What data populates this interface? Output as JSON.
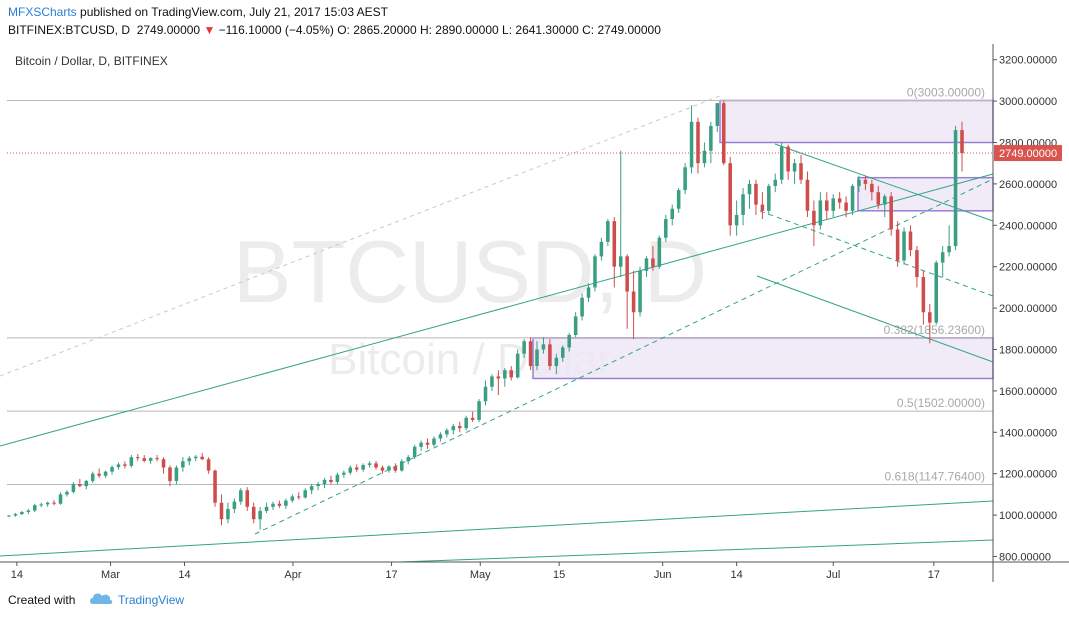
{
  "header": {
    "author": "MFXSCharts",
    "published_text": "published on TradingView.com, July 21, 2017 15:03 AEST",
    "symbol": "BITFINEX:BTCUSD, D",
    "last": "2749.00000",
    "change": "−116.10000 (−4.05%)",
    "open": "O: 2865.20000",
    "high": "H: 2890.00000",
    "low": "L: 2641.30000",
    "close": "C: 2749.00000",
    "change_color": "#e03a3a"
  },
  "footer": {
    "created_with": "Created with",
    "brand": "TradingView"
  },
  "chart_data": {
    "type": "candlestick",
    "title": "Bitcoin / Dollar, D, BITFINEX",
    "watermark_symbol": "BTCUSD, D",
    "watermark_name": "Bitcoin / Dollar",
    "ylim": [
      750,
      3280
    ],
    "y_ticks": [
      "3200.00000",
      "3000.00000",
      "2800.00000",
      "2600.00000",
      "2400.00000",
      "2200.00000",
      "2000.00000",
      "1800.00000",
      "1600.00000",
      "1400.00000",
      "1200.00000",
      "1000.00000",
      "800.00000"
    ],
    "x_ticks": [
      "14",
      "Mar",
      "14",
      "Apr",
      "17",
      "May",
      "15",
      "Jun",
      "14",
      "Jul",
      "17"
    ],
    "last_price_label": "2749.00000",
    "last_price": 2749,
    "fib_levels": [
      {
        "label": "0(3003.00000)",
        "value": 3003
      },
      {
        "label": "0.382(1856.23600)",
        "value": 1856.236
      },
      {
        "label": "0.5(1502.00000)",
        "value": 1502
      },
      {
        "label": "0.618(1147.76400)",
        "value": 1147.764
      }
    ],
    "zones": [
      {
        "from": 2800,
        "to": 3003
      },
      {
        "from": 2470,
        "to": 2630
      },
      {
        "from": 1660,
        "to": 1856
      }
    ],
    "colors": {
      "up": "#3a9e82",
      "down": "#cf4c4c",
      "trend": "#32a28a",
      "zone_fill": "#ede8f6",
      "zone_border": "#9a7ed6"
    },
    "candles": [
      [
        995,
        1000,
        990,
        998
      ],
      [
        998,
        1010,
        992,
        1005
      ],
      [
        1005,
        1020,
        1000,
        1015
      ],
      [
        1015,
        1030,
        1005,
        1022
      ],
      [
        1022,
        1055,
        1015,
        1048
      ],
      [
        1048,
        1060,
        1038,
        1052
      ],
      [
        1052,
        1065,
        1040,
        1060
      ],
      [
        1060,
        1072,
        1048,
        1055
      ],
      [
        1055,
        1110,
        1050,
        1100
      ],
      [
        1100,
        1120,
        1090,
        1112
      ],
      [
        1112,
        1160,
        1105,
        1150
      ],
      [
        1150,
        1175,
        1135,
        1140
      ],
      [
        1140,
        1170,
        1125,
        1165
      ],
      [
        1165,
        1210,
        1155,
        1200
      ],
      [
        1200,
        1225,
        1180,
        1190
      ],
      [
        1190,
        1215,
        1180,
        1210
      ],
      [
        1210,
        1240,
        1195,
        1232
      ],
      [
        1232,
        1255,
        1220,
        1245
      ],
      [
        1245,
        1260,
        1225,
        1238
      ],
      [
        1238,
        1290,
        1230,
        1280
      ],
      [
        1280,
        1295,
        1262,
        1275
      ],
      [
        1275,
        1290,
        1255,
        1262
      ],
      [
        1262,
        1280,
        1248,
        1275
      ],
      [
        1275,
        1290,
        1260,
        1270
      ],
      [
        1270,
        1280,
        1200,
        1230
      ],
      [
        1230,
        1240,
        1140,
        1165
      ],
      [
        1165,
        1240,
        1150,
        1230
      ],
      [
        1230,
        1280,
        1210,
        1260
      ],
      [
        1260,
        1285,
        1240,
        1275
      ],
      [
        1275,
        1290,
        1260,
        1282
      ],
      [
        1282,
        1300,
        1265,
        1270
      ],
      [
        1270,
        1280,
        1200,
        1215
      ],
      [
        1215,
        1220,
        1040,
        1060
      ],
      [
        1060,
        1100,
        950,
        980
      ],
      [
        980,
        1060,
        960,
        1030
      ],
      [
        1030,
        1080,
        1010,
        1065
      ],
      [
        1065,
        1130,
        1050,
        1120
      ],
      [
        1120,
        1135,
        1020,
        1040
      ],
      [
        1040,
        1060,
        960,
        980
      ],
      [
        980,
        1040,
        930,
        1020
      ],
      [
        1020,
        1060,
        1010,
        1040
      ],
      [
        1040,
        1065,
        1025,
        1055
      ],
      [
        1055,
        1070,
        1035,
        1045
      ],
      [
        1045,
        1080,
        1030,
        1070
      ],
      [
        1070,
        1100,
        1060,
        1090
      ],
      [
        1090,
        1110,
        1075,
        1085
      ],
      [
        1085,
        1130,
        1080,
        1120
      ],
      [
        1120,
        1150,
        1100,
        1140
      ],
      [
        1140,
        1160,
        1120,
        1150
      ],
      [
        1150,
        1180,
        1130,
        1170
      ],
      [
        1170,
        1190,
        1150,
        1160
      ],
      [
        1160,
        1205,
        1150,
        1195
      ],
      [
        1195,
        1215,
        1180,
        1205
      ],
      [
        1205,
        1240,
        1195,
        1230
      ],
      [
        1230,
        1245,
        1210,
        1220
      ],
      [
        1220,
        1250,
        1210,
        1242
      ],
      [
        1242,
        1260,
        1230,
        1250
      ],
      [
        1250,
        1262,
        1220,
        1230
      ],
      [
        1230,
        1240,
        1200,
        1215
      ],
      [
        1215,
        1240,
        1205,
        1235
      ],
      [
        1235,
        1250,
        1205,
        1215
      ],
      [
        1215,
        1270,
        1210,
        1260
      ],
      [
        1260,
        1290,
        1245,
        1280
      ],
      [
        1280,
        1340,
        1270,
        1330
      ],
      [
        1330,
        1360,
        1310,
        1350
      ],
      [
        1350,
        1370,
        1320,
        1340
      ],
      [
        1340,
        1380,
        1330,
        1370
      ],
      [
        1370,
        1400,
        1355,
        1390
      ],
      [
        1390,
        1420,
        1375,
        1410
      ],
      [
        1410,
        1440,
        1390,
        1430
      ],
      [
        1430,
        1450,
        1400,
        1420
      ],
      [
        1420,
        1480,
        1410,
        1470
      ],
      [
        1470,
        1500,
        1450,
        1460
      ],
      [
        1460,
        1560,
        1450,
        1550
      ],
      [
        1550,
        1650,
        1530,
        1620
      ],
      [
        1620,
        1680,
        1600,
        1670
      ],
      [
        1670,
        1700,
        1580,
        1660
      ],
      [
        1660,
        1710,
        1620,
        1700
      ],
      [
        1700,
        1720,
        1650,
        1665
      ],
      [
        1665,
        1800,
        1660,
        1780
      ],
      [
        1780,
        1850,
        1760,
        1840
      ],
      [
        1840,
        1860,
        1700,
        1720
      ],
      [
        1720,
        1840,
        1700,
        1800
      ],
      [
        1800,
        1860,
        1780,
        1825
      ],
      [
        1825,
        1850,
        1700,
        1720
      ],
      [
        1720,
        1780,
        1680,
        1760
      ],
      [
        1760,
        1820,
        1740,
        1810
      ],
      [
        1810,
        1880,
        1790,
        1870
      ],
      [
        1870,
        1980,
        1860,
        1960
      ],
      [
        1960,
        2070,
        1940,
        2050
      ],
      [
        2050,
        2120,
        2030,
        2100
      ],
      [
        2100,
        2260,
        2080,
        2250
      ],
      [
        2250,
        2340,
        2230,
        2320
      ],
      [
        2320,
        2430,
        2300,
        2420
      ],
      [
        2420,
        2440,
        2100,
        2200
      ],
      [
        2200,
        2760,
        2150,
        2250
      ],
      [
        2250,
        2260,
        1900,
        2080
      ],
      [
        2080,
        2180,
        1850,
        1980
      ],
      [
        1980,
        2200,
        1960,
        2180
      ],
      [
        2180,
        2250,
        2150,
        2240
      ],
      [
        2240,
        2300,
        2180,
        2200
      ],
      [
        2200,
        2350,
        2190,
        2340
      ],
      [
        2340,
        2450,
        2320,
        2430
      ],
      [
        2430,
        2500,
        2400,
        2480
      ],
      [
        2480,
        2580,
        2460,
        2570
      ],
      [
        2570,
        2700,
        2550,
        2680
      ],
      [
        2680,
        2980,
        2650,
        2900
      ],
      [
        2900,
        2920,
        2650,
        2700
      ],
      [
        2700,
        2800,
        2680,
        2760
      ],
      [
        2760,
        2900,
        2700,
        2880
      ],
      [
        2880,
        2990,
        2850,
        2990
      ],
      [
        2990,
        3003,
        2690,
        2700
      ],
      [
        2700,
        2730,
        2350,
        2400
      ],
      [
        2400,
        2520,
        2350,
        2450
      ],
      [
        2450,
        2580,
        2400,
        2550
      ],
      [
        2550,
        2620,
        2480,
        2600
      ],
      [
        2600,
        2620,
        2450,
        2500
      ],
      [
        2500,
        2560,
        2430,
        2470
      ],
      [
        2470,
        2600,
        2450,
        2590
      ],
      [
        2590,
        2650,
        2560,
        2620
      ],
      [
        2620,
        2800,
        2600,
        2780
      ],
      [
        2780,
        2790,
        2620,
        2660
      ],
      [
        2660,
        2720,
        2600,
        2700
      ],
      [
        2700,
        2740,
        2600,
        2620
      ],
      [
        2620,
        2660,
        2440,
        2470
      ],
      [
        2470,
        2520,
        2300,
        2400
      ],
      [
        2400,
        2560,
        2380,
        2520
      ],
      [
        2520,
        2560,
        2430,
        2470
      ],
      [
        2470,
        2550,
        2440,
        2530
      ],
      [
        2530,
        2560,
        2480,
        2510
      ],
      [
        2510,
        2540,
        2440,
        2470
      ],
      [
        2470,
        2600,
        2450,
        2590
      ],
      [
        2590,
        2640,
        2560,
        2620
      ],
      [
        2620,
        2640,
        2570,
        2600
      ],
      [
        2600,
        2620,
        2520,
        2560
      ],
      [
        2560,
        2590,
        2480,
        2500
      ],
      [
        2500,
        2550,
        2440,
        2540
      ],
      [
        2540,
        2560,
        2350,
        2380
      ],
      [
        2380,
        2420,
        2200,
        2230
      ],
      [
        2230,
        2390,
        2210,
        2370
      ],
      [
        2370,
        2400,
        2250,
        2280
      ],
      [
        2280,
        2300,
        2100,
        2150
      ],
      [
        2150,
        2180,
        1920,
        1980
      ],
      [
        1980,
        2020,
        1830,
        1930
      ],
      [
        1930,
        2230,
        1920,
        2220
      ],
      [
        2220,
        2300,
        2150,
        2270
      ],
      [
        2270,
        2400,
        2250,
        2300
      ],
      [
        2300,
        2880,
        2280,
        2860
      ],
      [
        2860,
        2900,
        2660,
        2749
      ]
    ]
  }
}
